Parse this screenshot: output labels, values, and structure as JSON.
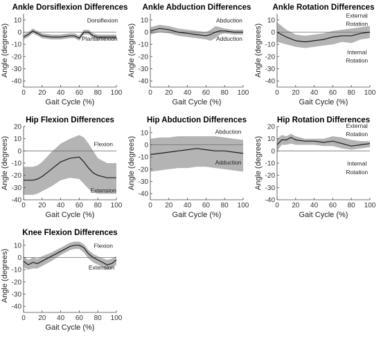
{
  "chart_data": [
    {
      "type": "line",
      "title": "Ankle Dorsiflexion Differences",
      "xlabel": "Gait Cycle (%)",
      "ylabel": "Angle (degrees)",
      "xlim": [
        0,
        100
      ],
      "ylim": [
        -45,
        15
      ],
      "xticks": [
        0,
        20,
        40,
        60,
        80,
        100
      ],
      "yticks": [
        -40,
        -30,
        -20,
        -10,
        0,
        10
      ],
      "annotations": [
        {
          "text": "Dorsiflexion",
          "x": 85,
          "y": 8
        },
        {
          "text": "Plantarflexion",
          "x": 82,
          "y": -7
        }
      ],
      "series": [
        {
          "x": [
            0,
            5,
            10,
            15,
            20,
            30,
            40,
            50,
            55,
            60,
            65,
            70,
            75,
            80,
            90,
            100
          ],
          "mean": [
            -4,
            -2,
            1,
            -1,
            -3,
            -4,
            -4,
            -3,
            -3,
            -5,
            0,
            0,
            -3,
            -4,
            -4,
            -4
          ],
          "upper": [
            -2,
            0,
            3,
            1,
            -1,
            -2,
            -2,
            -1,
            -1,
            -3,
            2,
            2,
            -1,
            -2,
            -2,
            -2
          ],
          "lower": [
            -6,
            -4,
            -1,
            -3,
            -5,
            -6,
            -6,
            -5,
            -5,
            -7,
            -2,
            -2,
            -5,
            -6,
            -6,
            -6
          ]
        }
      ]
    },
    {
      "type": "line",
      "title": "Ankle Abduction Differences",
      "xlabel": "Gait Cycle (%)",
      "ylabel": "Angle (degrees)",
      "xlim": [
        0,
        100
      ],
      "ylim": [
        -45,
        15
      ],
      "xticks": [
        0,
        20,
        40,
        60,
        80,
        100
      ],
      "yticks": [
        -40,
        -30,
        -20,
        -10,
        0,
        10
      ],
      "annotations": [
        {
          "text": "Abduction",
          "x": 85,
          "y": 8
        },
        {
          "text": "Adduction",
          "x": 85,
          "y": -7
        }
      ],
      "series": [
        {
          "x": [
            0,
            10,
            20,
            30,
            40,
            50,
            60,
            65,
            70,
            75,
            80,
            90,
            100
          ],
          "mean": [
            1,
            3,
            2,
            0,
            -1,
            -2,
            -3,
            -2,
            0,
            1,
            1,
            0,
            0
          ],
          "upper": [
            4,
            6,
            5,
            3,
            2,
            1,
            0,
            2,
            5,
            4,
            3,
            2,
            2
          ],
          "lower": [
            -2,
            0,
            -1,
            -3,
            -4,
            -5,
            -6,
            -7,
            -5,
            -2,
            -1,
            -2,
            -2
          ]
        }
      ]
    },
    {
      "type": "line",
      "title": "Ankle Rotation Differences",
      "xlabel": "Gait Cycle (%)",
      "ylabel": "Angle (degrees)",
      "xlim": [
        0,
        100
      ],
      "ylim": [
        -45,
        15
      ],
      "xticks": [
        0,
        20,
        40,
        60,
        80,
        100
      ],
      "yticks": [
        -40,
        -30,
        -20,
        -10,
        0,
        10
      ],
      "annotations": [
        {
          "text": "External",
          "x": 86,
          "y": 12
        },
        {
          "text": "Rotation",
          "x": 86,
          "y": 5
        },
        {
          "text": "Internal",
          "x": 86,
          "y": -18
        },
        {
          "text": "Rotation",
          "x": 86,
          "y": -25
        }
      ],
      "series": [
        {
          "x": [
            0,
            10,
            20,
            30,
            40,
            50,
            60,
            70,
            80,
            90,
            100
          ],
          "mean": [
            0,
            -4,
            -7,
            -8,
            -7,
            -6,
            -4,
            -3,
            -3,
            -1,
            0
          ],
          "upper": [
            8,
            2,
            -2,
            -3,
            -2,
            -1,
            1,
            2,
            3,
            4,
            5
          ],
          "lower": [
            -8,
            -10,
            -12,
            -13,
            -12,
            -11,
            -10,
            -8,
            -9,
            -6,
            -5
          ]
        }
      ]
    },
    {
      "type": "line",
      "title": "Hip Flexion Differences",
      "xlabel": "Gait Cycle (%)",
      "ylabel": "Angle (degrees)",
      "xlim": [
        0,
        100
      ],
      "ylim": [
        -40,
        20
      ],
      "xticks": [
        0,
        20,
        40,
        60,
        80,
        100
      ],
      "yticks": [
        -40,
        -30,
        -20,
        -10,
        0,
        10,
        20
      ],
      "annotations": [
        {
          "text": "Flexion",
          "x": 86,
          "y": 4
        },
        {
          "text": "Extension",
          "x": 86,
          "y": -34
        }
      ],
      "series": [
        {
          "x": [
            0,
            5,
            10,
            15,
            20,
            30,
            40,
            50,
            60,
            65,
            70,
            75,
            80,
            90,
            100
          ],
          "mean": [
            -24,
            -24,
            -24,
            -23,
            -21,
            -15,
            -9,
            -6,
            -5,
            -9,
            -14,
            -18,
            -20,
            -22,
            -22
          ],
          "upper": [
            -13,
            -13,
            -13,
            -12,
            -9,
            -1,
            6,
            10,
            13,
            11,
            6,
            0,
            -6,
            -10,
            -10
          ],
          "lower": [
            -36,
            -36,
            -36,
            -35,
            -33,
            -29,
            -24,
            -22,
            -23,
            -27,
            -31,
            -34,
            -35,
            -35,
            -35
          ]
        }
      ]
    },
    {
      "type": "line",
      "title": "Hip Abduction Differences",
      "xlabel": "Gait Cycle (%)",
      "ylabel": "Angle (degrees)",
      "xlim": [
        0,
        100
      ],
      "ylim": [
        -45,
        15
      ],
      "xticks": [
        0,
        20,
        40,
        60,
        80,
        100
      ],
      "yticks": [
        -40,
        -30,
        -20,
        -10,
        0,
        10
      ],
      "annotations": [
        {
          "text": "Abduction",
          "x": 84,
          "y": 9
        },
        {
          "text": "Adduction",
          "x": 84,
          "y": -16
        }
      ],
      "series": [
        {
          "x": [
            0,
            10,
            20,
            30,
            40,
            50,
            60,
            70,
            80,
            90,
            100
          ],
          "mean": [
            -8,
            -7,
            -6,
            -5,
            -4,
            -3,
            -4,
            -5,
            -5,
            -6,
            -7
          ],
          "upper": [
            5,
            6,
            6,
            7,
            7,
            7,
            7,
            7,
            6,
            5,
            4
          ],
          "lower": [
            -22,
            -21,
            -20,
            -19,
            -19,
            -18,
            -18,
            -19,
            -20,
            -21,
            -22
          ]
        }
      ]
    },
    {
      "type": "line",
      "title": "Hip Rotation Differences",
      "xlabel": "Gait Cycle (%)",
      "ylabel": "Angle (degrees)",
      "xlim": [
        0,
        100
      ],
      "ylim": [
        -40,
        20
      ],
      "xticks": [
        0,
        20,
        40,
        60,
        80,
        100
      ],
      "yticks": [
        -40,
        -30,
        -20,
        -10,
        0,
        10,
        20
      ],
      "annotations": [
        {
          "text": "External",
          "x": 86,
          "y": 19
        },
        {
          "text": "Rotation",
          "x": 86,
          "y": 12
        },
        {
          "text": "Internal",
          "x": 86,
          "y": -12
        },
        {
          "text": "Rotation",
          "x": 86,
          "y": -19
        }
      ],
      "series": [
        {
          "x": [
            0,
            5,
            10,
            15,
            20,
            30,
            40,
            50,
            60,
            70,
            80,
            90,
            100
          ],
          "mean": [
            5,
            9,
            9,
            11,
            9,
            8,
            8,
            7,
            8,
            6,
            4,
            5,
            6
          ],
          "upper": [
            10,
            13,
            12,
            14,
            12,
            10,
            10,
            10,
            12,
            11,
            9,
            8,
            8
          ],
          "lower": [
            0,
            5,
            5,
            6,
            5,
            5,
            5,
            4,
            4,
            2,
            1,
            2,
            3
          ]
        }
      ]
    },
    {
      "type": "line",
      "title": "Knee Flexion Differences",
      "xlabel": "Gait Cycle (%)",
      "ylabel": "Angle (degrees)",
      "xlim": [
        0,
        100
      ],
      "ylim": [
        -45,
        15
      ],
      "xticks": [
        0,
        20,
        40,
        60,
        80,
        100
      ],
      "yticks": [
        -40,
        -30,
        -20,
        -10,
        0,
        10
      ],
      "annotations": [
        {
          "text": "Flexion",
          "x": 86,
          "y": 8
        },
        {
          "text": "Extension",
          "x": 84,
          "y": -10
        }
      ],
      "series": [
        {
          "x": [
            0,
            5,
            10,
            15,
            20,
            30,
            40,
            50,
            55,
            60,
            65,
            70,
            75,
            80,
            90,
            95,
            100
          ],
          "mean": [
            -3,
            -6,
            -4,
            -5,
            -3,
            1,
            5,
            9,
            10,
            10,
            8,
            3,
            0,
            -2,
            -6,
            -5,
            -2
          ],
          "upper": [
            1,
            -2,
            0,
            -1,
            1,
            4,
            8,
            12,
            13,
            13,
            11,
            6,
            3,
            1,
            -2,
            -1,
            1
          ],
          "lower": [
            -8,
            -10,
            -9,
            -9,
            -7,
            -3,
            2,
            6,
            7,
            7,
            4,
            -1,
            -4,
            -6,
            -10,
            -9,
            -6
          ]
        }
      ]
    }
  ]
}
